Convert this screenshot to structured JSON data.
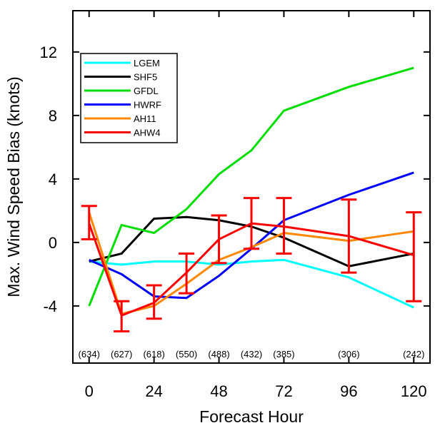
{
  "chart_data": {
    "type": "line",
    "xlabel": "Forecast Hour",
    "ylabel": "Max. Wind Speed Bias (knots)",
    "xlim": [
      -6,
      126
    ],
    "ylim": [
      -7.6,
      14.6
    ],
    "x_ticks": [
      0,
      24,
      48,
      72,
      96,
      120
    ],
    "y_ticks": [
      -4,
      0,
      4,
      8,
      12
    ],
    "x_tick_labels": [
      "0",
      "24",
      "48",
      "72",
      "96",
      "120"
    ],
    "y_tick_labels": [
      "-4",
      "0",
      "4",
      "8",
      "12"
    ],
    "grid": false,
    "legend_position": "top-left",
    "series": [
      {
        "name": "LGEM",
        "color": "#00ffff",
        "x": [
          0,
          12,
          24,
          36,
          48,
          60,
          72,
          96,
          120
        ],
        "y": [
          -1.2,
          -1.4,
          -1.2,
          -1.2,
          -1.4,
          -1.2,
          -1.1,
          -2.2,
          -4.1
        ]
      },
      {
        "name": "SHF5",
        "color": "#000000",
        "x": [
          0,
          12,
          24,
          36,
          48,
          60,
          72,
          96,
          120
        ],
        "y": [
          -1.2,
          -0.7,
          1.5,
          1.6,
          1.4,
          1.0,
          0.3,
          -1.5,
          -0.7
        ]
      },
      {
        "name": "GFDL",
        "color": "#00dd00",
        "x": [
          0,
          12,
          24,
          36,
          48,
          60,
          72,
          96,
          120
        ],
        "y": [
          -4.0,
          1.1,
          0.6,
          2.1,
          4.3,
          5.8,
          8.3,
          9.8,
          11.0
        ]
      },
      {
        "name": "HWRF",
        "color": "#0000ff",
        "x": [
          0,
          12,
          24,
          36,
          48,
          60,
          72,
          96,
          120
        ],
        "y": [
          -1.1,
          -2.0,
          -3.4,
          -3.5,
          -2.1,
          -0.4,
          1.4,
          3.0,
          4.4
        ]
      },
      {
        "name": "AH11",
        "color": "#ff8800",
        "x": [
          0,
          12,
          24,
          36,
          48,
          60,
          72,
          96,
          120
        ],
        "y": [
          1.9,
          -4.5,
          -4.0,
          -2.6,
          -1.1,
          -0.3,
          0.6,
          0.1,
          0.7
        ]
      },
      {
        "name": "AHW4",
        "color": "#ff0000",
        "x": [
          0,
          12,
          24,
          36,
          48,
          60,
          72,
          96,
          120
        ],
        "y": [
          1.2,
          -4.6,
          -3.8,
          -1.9,
          0.2,
          1.2,
          1.0,
          0.4,
          -0.8
        ]
      }
    ],
    "error_bars": {
      "series": "AHW4",
      "color": "#ff0000",
      "x": [
        0,
        12,
        24,
        36,
        48,
        60,
        72,
        96,
        120
      ],
      "low": [
        0.2,
        -5.6,
        -4.8,
        -3.2,
        -1.3,
        -0.4,
        -0.7,
        -1.9,
        -3.7
      ],
      "high": [
        2.3,
        -3.7,
        -2.7,
        -0.7,
        1.7,
        2.8,
        2.8,
        2.7,
        1.9
      ]
    },
    "sample_counts": {
      "x": [
        0,
        12,
        24,
        36,
        48,
        60,
        72,
        96,
        120
      ],
      "labels": [
        "(634)",
        "(627)",
        "(618)",
        "(550)",
        "(488)",
        "(432)",
        "(385)",
        "(306)",
        "(242)"
      ]
    }
  }
}
